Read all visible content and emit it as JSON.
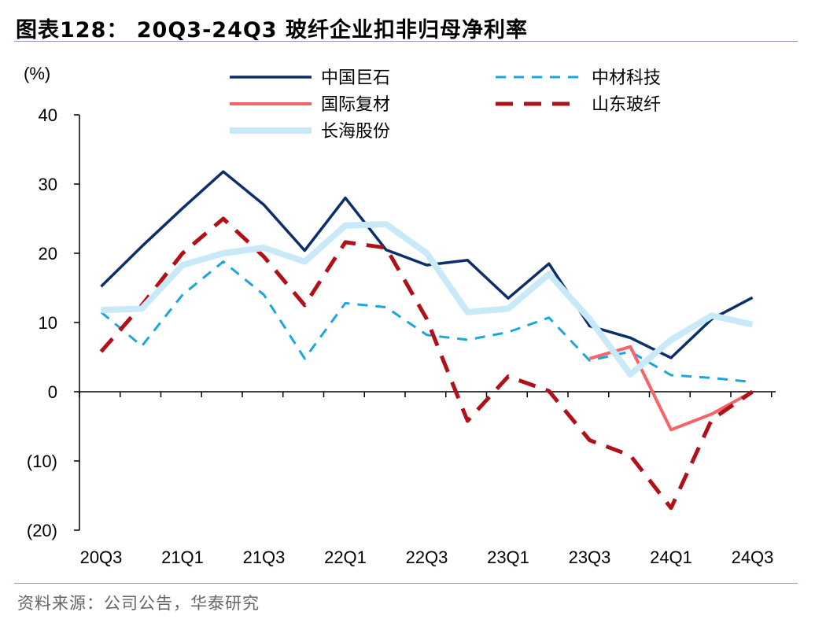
{
  "header": {
    "title": "图表128：  20Q3-24Q3 玻纤企业扣非归母净利率"
  },
  "footer": {
    "source": "资料来源：公司公告，华泰研究"
  },
  "chart_data": {
    "type": "line",
    "unit_label": "(%)",
    "categories": [
      "20Q3",
      "20Q4",
      "21Q1",
      "21Q2",
      "21Q3",
      "21Q4",
      "22Q1",
      "22Q2",
      "22Q3",
      "22Q4",
      "23Q1",
      "23Q2",
      "23Q3",
      "23Q4",
      "24Q1",
      "24Q2",
      "24Q3"
    ],
    "x_tick_labels": [
      "20Q3",
      "21Q1",
      "21Q3",
      "22Q1",
      "22Q3",
      "23Q1",
      "23Q3",
      "24Q1",
      "24Q3"
    ],
    "ylim": [
      -20,
      40
    ],
    "y_ticks": [
      40,
      30,
      20,
      10,
      0,
      -10,
      -20
    ],
    "y_tick_labels": [
      "40",
      "30",
      "20",
      "10",
      "0",
      "(10)",
      "(20)"
    ],
    "grid": false,
    "legend_position": "top",
    "series": [
      {
        "name": "中国巨石",
        "color": "#0a2f6b",
        "dash": "solid",
        "width": 3.5,
        "values": [
          15.2,
          21.0,
          26.5,
          31.8,
          27.0,
          20.4,
          28.0,
          20.5,
          18.3,
          19.0,
          13.5,
          18.5,
          9.5,
          7.8,
          4.9,
          10.5,
          13.6
        ]
      },
      {
        "name": "中材科技",
        "color": "#1ba6e0",
        "dash": "dashed",
        "width": 3,
        "values": [
          11.5,
          6.6,
          14.0,
          18.8,
          14.0,
          4.8,
          12.8,
          12.2,
          8.2,
          7.5,
          8.6,
          10.7,
          4.5,
          5.8,
          2.4,
          2.0,
          1.4
        ]
      },
      {
        "name": "国际复材",
        "color": "#f46468",
        "dash": "solid",
        "width": 4,
        "values": [
          null,
          null,
          null,
          null,
          null,
          null,
          null,
          null,
          null,
          null,
          null,
          null,
          4.8,
          6.5,
          -5.5,
          -3.2,
          0.0
        ]
      },
      {
        "name": "山东玻纤",
        "color": "#b01018",
        "dash": "dashed",
        "width": 5,
        "values": [
          5.8,
          12.5,
          20.0,
          25.0,
          19.5,
          12.5,
          21.6,
          20.8,
          10.5,
          -4.2,
          2.2,
          0.1,
          -7.0,
          -9.2,
          -16.8,
          -4.0,
          0.0
        ]
      },
      {
        "name": "长海股份",
        "color": "#c8eaf8",
        "dash": "solid",
        "width": 8,
        "values": [
          11.8,
          12.0,
          18.3,
          20.0,
          20.8,
          18.8,
          24.0,
          24.2,
          20.0,
          11.5,
          12.0,
          17.0,
          10.5,
          2.5,
          7.5,
          11.0,
          9.7
        ]
      }
    ]
  }
}
